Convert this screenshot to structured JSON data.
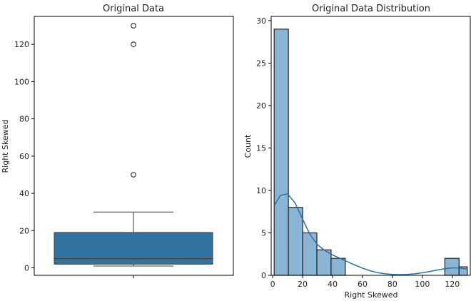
{
  "chart_data": [
    {
      "type": "box",
      "title": "Original Data",
      "xlabel": "",
      "ylabel": "Right Skewed",
      "ylim": [
        -4,
        135
      ],
      "yticks": [
        0,
        20,
        40,
        60,
        80,
        100,
        120
      ],
      "box": {
        "min": 1,
        "q1": 2,
        "median": 5,
        "q3": 19,
        "max": 30
      },
      "outliers": [
        50,
        120,
        130
      ],
      "color": "#3274a1"
    },
    {
      "type": "histogram",
      "title": "Original Data Distribution",
      "xlabel": "Right Skewed",
      "ylabel": "Count",
      "xlim": [
        -1,
        132
      ],
      "ylim": [
        0,
        30.5
      ],
      "xticks": [
        0,
        20,
        40,
        60,
        80,
        100,
        120
      ],
      "yticks": [
        0,
        5,
        10,
        15,
        20,
        25,
        30
      ],
      "bin_edges": [
        1,
        10.5,
        20,
        29.5,
        39,
        48.5,
        58,
        67.5,
        77,
        86.5,
        96,
        105.5,
        115,
        124.5,
        130
      ],
      "counts": [
        29,
        8,
        5,
        3,
        2,
        0,
        0,
        0,
        0,
        0,
        0,
        0,
        2,
        1
      ],
      "kde": [
        [
          1,
          8.2
        ],
        [
          5,
          9.4
        ],
        [
          10,
          9.6
        ],
        [
          15,
          8.5
        ],
        [
          20,
          6.6
        ],
        [
          25,
          4.8
        ],
        [
          30,
          3.6
        ],
        [
          35,
          2.9
        ],
        [
          40,
          2.4
        ],
        [
          45,
          2.0
        ],
        [
          50,
          1.6
        ],
        [
          55,
          1.2
        ],
        [
          60,
          0.85
        ],
        [
          65,
          0.55
        ],
        [
          70,
          0.32
        ],
        [
          75,
          0.18
        ],
        [
          80,
          0.1
        ],
        [
          85,
          0.08
        ],
        [
          90,
          0.1
        ],
        [
          95,
          0.18
        ],
        [
          100,
          0.3
        ],
        [
          105,
          0.45
        ],
        [
          110,
          0.62
        ],
        [
          115,
          0.78
        ],
        [
          120,
          0.88
        ],
        [
          125,
          0.85
        ],
        [
          130,
          0.72
        ]
      ],
      "bar_color": "#8bb5d4",
      "kde_color": "#2f6f9c"
    }
  ]
}
